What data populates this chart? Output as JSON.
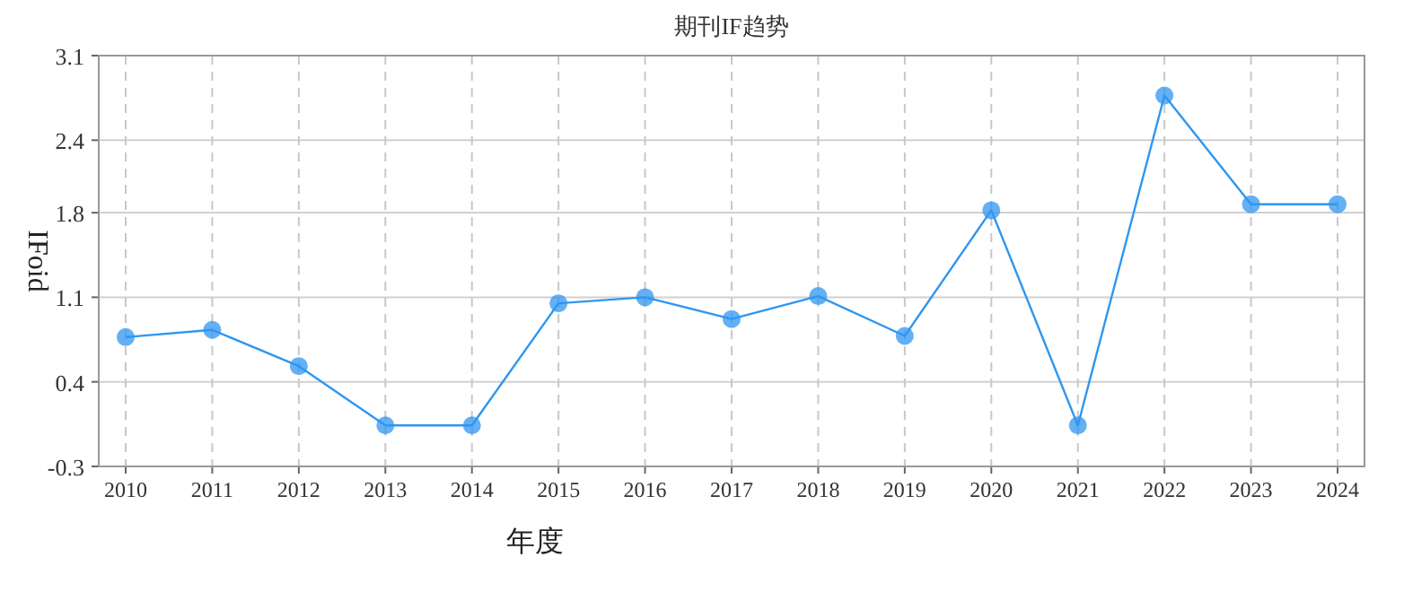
{
  "chart_data": {
    "type": "line",
    "title": "期刊IF趋势",
    "xlabel": "年度",
    "ylabel": "IFoid",
    "categories": [
      "2010",
      "2011",
      "2012",
      "2013",
      "2014",
      "2015",
      "2016",
      "2017",
      "2018",
      "2019",
      "2020",
      "2021",
      "2022",
      "2023",
      "2024"
    ],
    "series": [
      {
        "color": "#2f96f0",
        "values": [
          0.77,
          0.83,
          0.53,
          0.04,
          0.04,
          1.05,
          1.1,
          0.92,
          1.11,
          0.78,
          1.82,
          0.04,
          2.77,
          1.87,
          1.87
        ]
      }
    ],
    "ylim": [
      -0.3,
      3.1
    ],
    "yticks": [
      -0.3,
      0.4,
      1.1,
      1.8,
      2.4,
      3.1
    ],
    "grid": true,
    "marker": "circle",
    "line_style": "solid"
  }
}
